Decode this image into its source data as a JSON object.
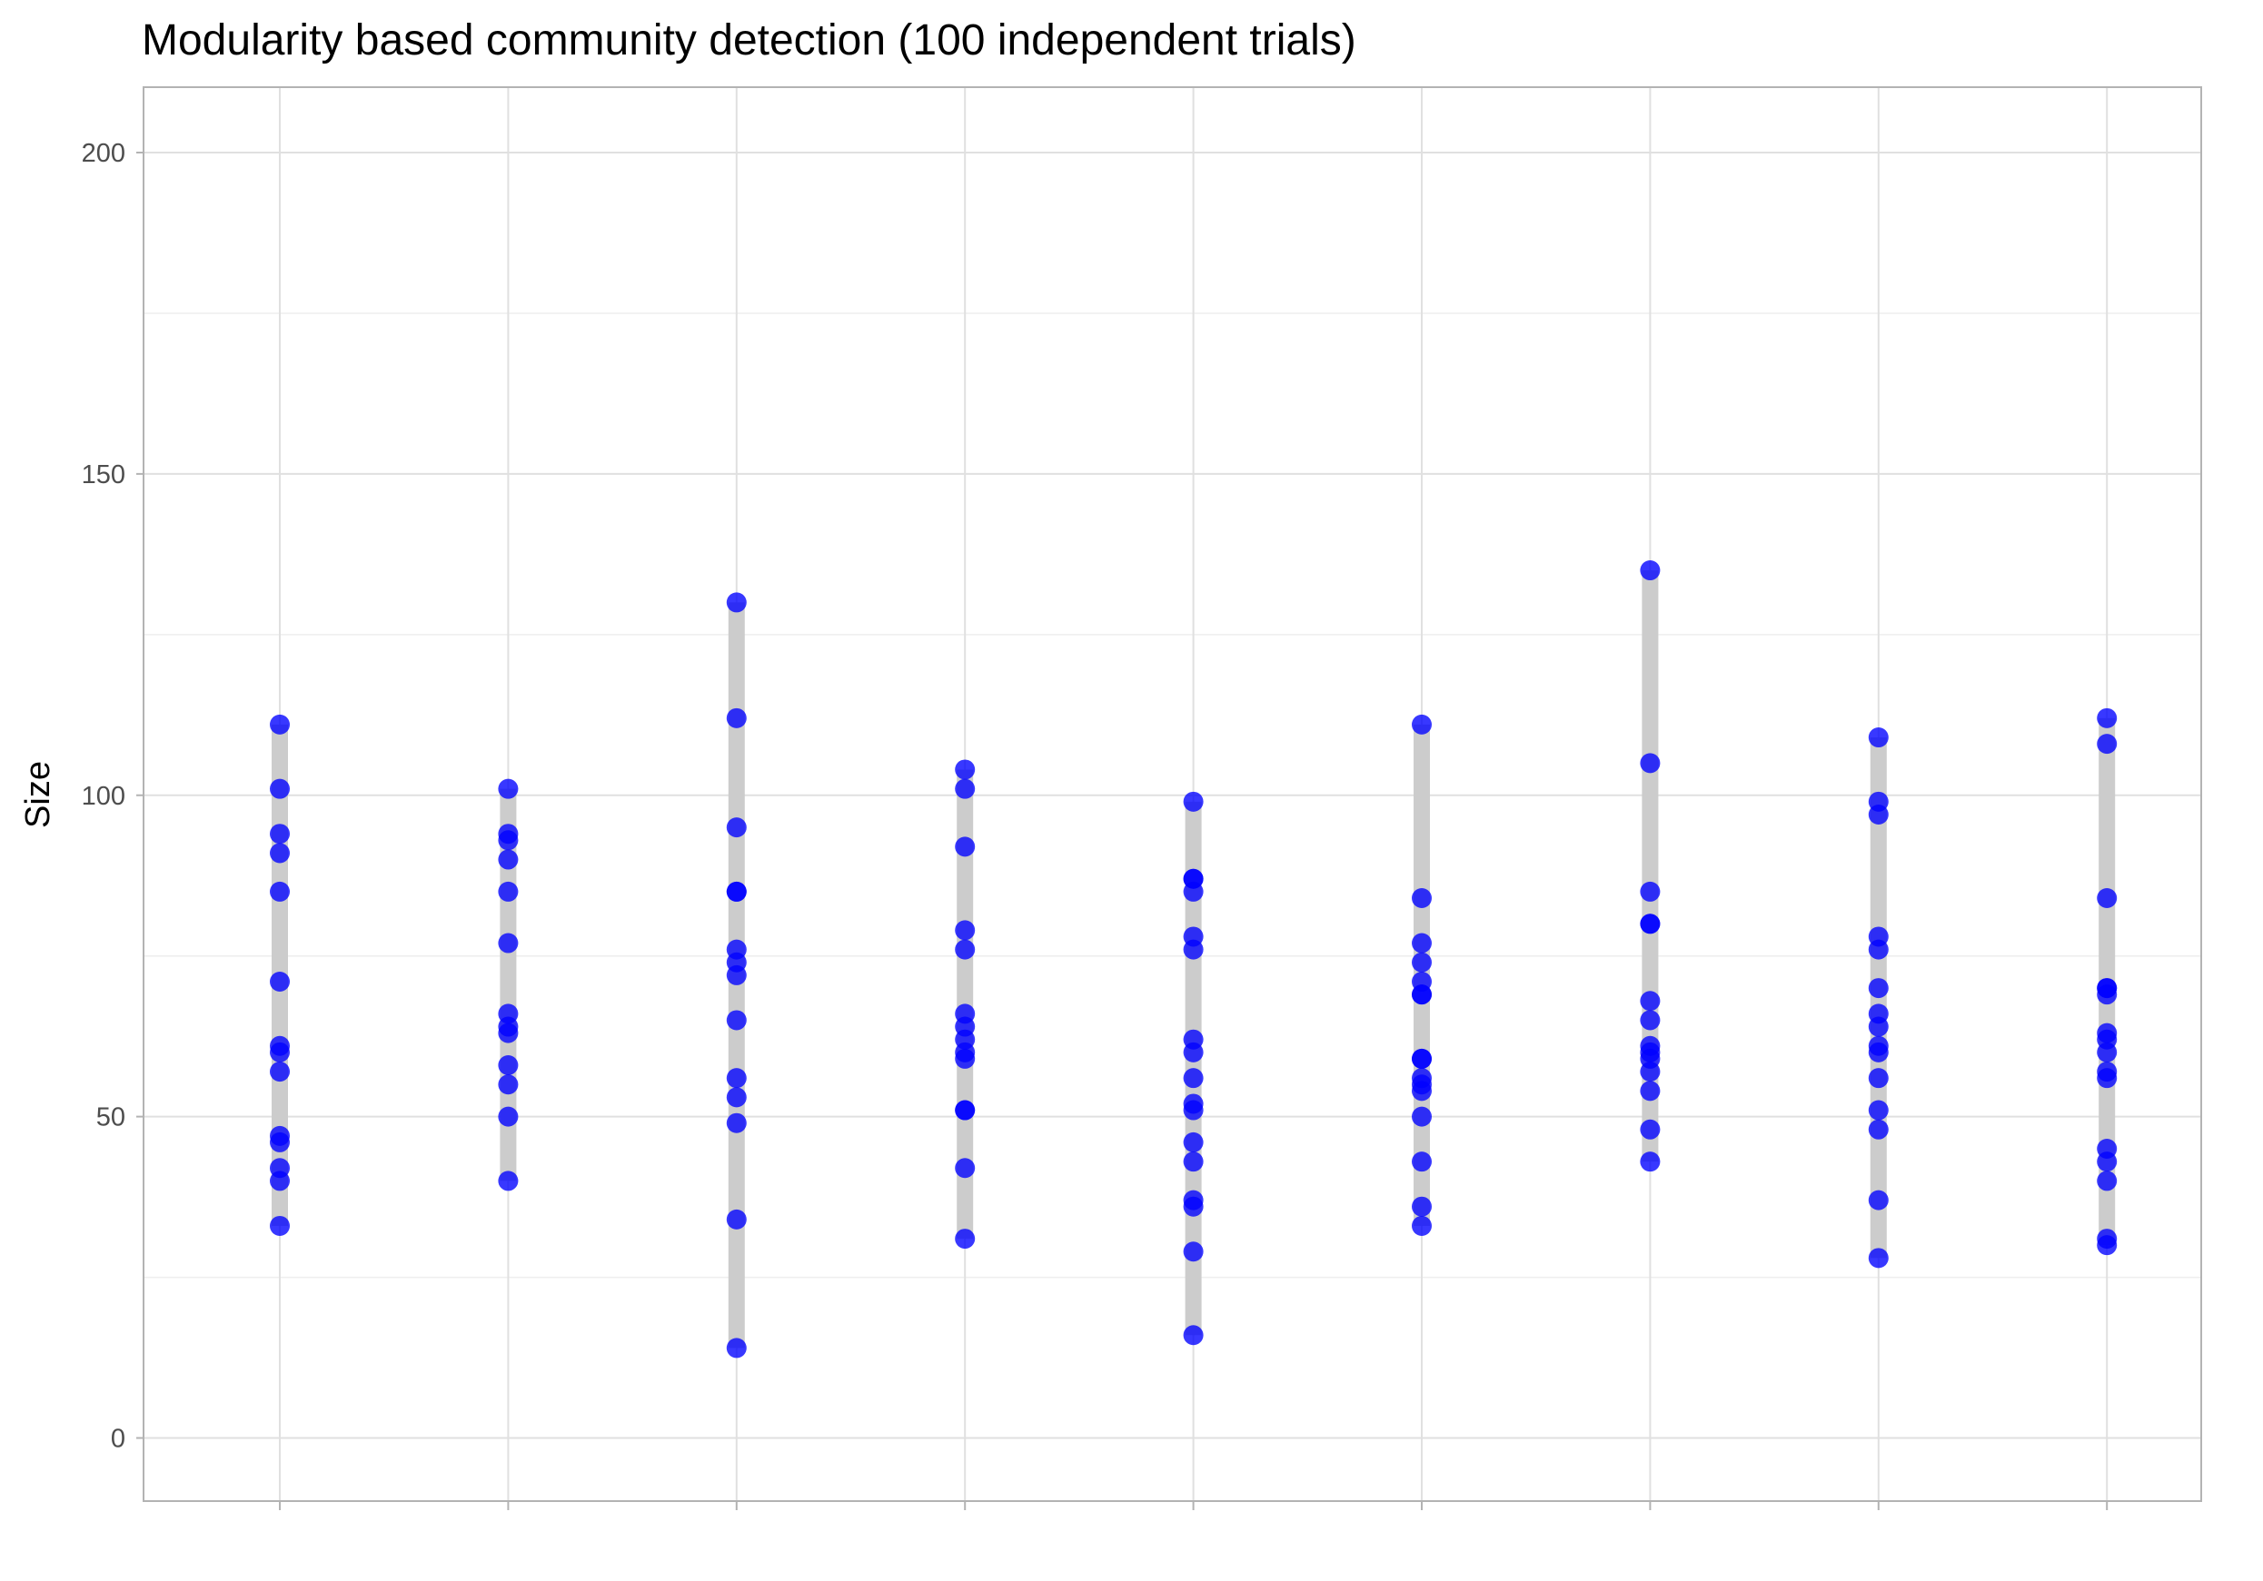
{
  "chart_data": {
    "type": "scatter",
    "title": "Modularity based community detection (100 independent trials)",
    "xlabel": "",
    "ylabel": "Size",
    "ylim": [
      -10,
      210
    ],
    "yticks": [
      0,
      50,
      100,
      150,
      200
    ],
    "grid": true,
    "legend": "none",
    "colors": {
      "point": "#0000ff",
      "range_bar": "#cccccc",
      "grid_major": "#e0e0e0",
      "grid_minor": "#eeeeee",
      "panel_border": "#b3b3b3",
      "tick": "#b3b3b3"
    },
    "series": [
      {
        "x": 1,
        "values": [
          111,
          101,
          94,
          91,
          85,
          71,
          61,
          60,
          57,
          47,
          46,
          42,
          40,
          33
        ]
      },
      {
        "x": 2,
        "values": [
          101,
          94,
          93,
          90,
          85,
          77,
          66,
          64,
          63,
          58,
          55,
          50,
          40
        ]
      },
      {
        "x": 3,
        "values": [
          130,
          112,
          95,
          85,
          85,
          76,
          74,
          72,
          65,
          56,
          53,
          49,
          34,
          14
        ]
      },
      {
        "x": 4,
        "values": [
          104,
          101,
          92,
          79,
          76,
          66,
          64,
          62,
          60,
          59,
          51,
          51,
          42,
          31
        ]
      },
      {
        "x": 5,
        "values": [
          99,
          87,
          87,
          85,
          78,
          76,
          62,
          60,
          56,
          52,
          51,
          46,
          43,
          37,
          36,
          29,
          16
        ]
      },
      {
        "x": 6,
        "values": [
          111,
          84,
          77,
          74,
          71,
          69,
          69,
          59,
          59,
          56,
          55,
          54,
          50,
          43,
          36,
          33
        ]
      },
      {
        "x": 7,
        "values": [
          135,
          105,
          85,
          80,
          80,
          68,
          65,
          61,
          60,
          59,
          57,
          54,
          48,
          43
        ]
      },
      {
        "x": 8,
        "values": [
          109,
          99,
          97,
          78,
          76,
          70,
          66,
          64,
          61,
          60,
          56,
          51,
          48,
          37,
          28
        ]
      },
      {
        "x": 9,
        "values": [
          112,
          108,
          84,
          70,
          70,
          69,
          63,
          62,
          60,
          57,
          56,
          45,
          43,
          40,
          31,
          30
        ]
      }
    ]
  }
}
